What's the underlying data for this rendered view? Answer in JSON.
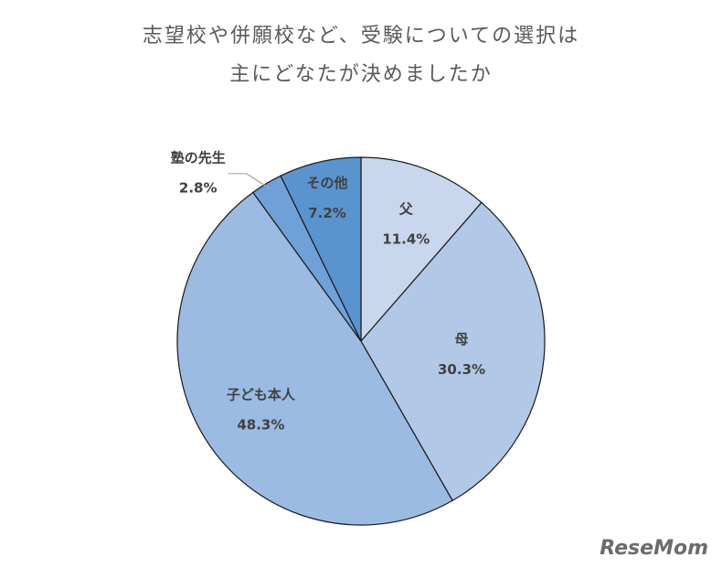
{
  "chart_data": {
    "type": "pie",
    "title": [
      "志望校や併願校など、受験についての選択は",
      "主にどなたが決めましたか"
    ],
    "categories": [
      "父",
      "母",
      "子ども本人",
      "塾の先生",
      "その他"
    ],
    "values": [
      11.4,
      30.3,
      48.3,
      2.8,
      7.2
    ],
    "value_labels": [
      "11.4%",
      "30.3%",
      "48.3%",
      "2.8%",
      "7.2%"
    ],
    "colors": [
      "#c9d7ee",
      "#b1c8e7",
      "#9bbbe2",
      "#6fa1d8",
      "#5a94cf"
    ],
    "watermark": "ReseMom"
  }
}
